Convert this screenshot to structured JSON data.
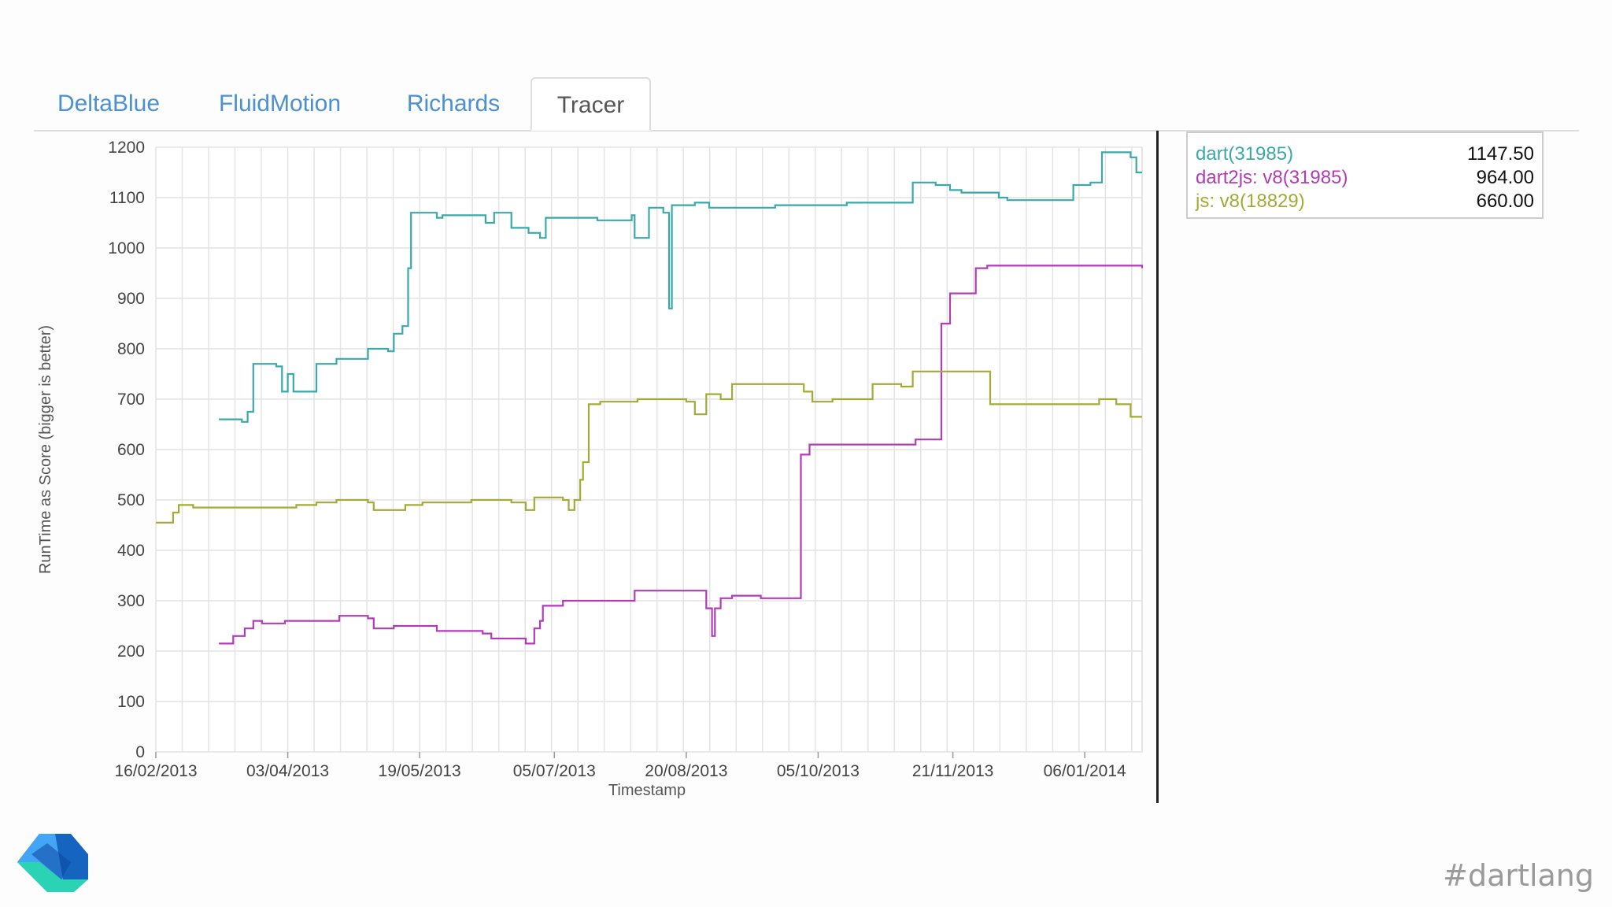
{
  "tabs": [
    {
      "label": "DeltaBlue",
      "active": false
    },
    {
      "label": "FluidMotion",
      "active": false
    },
    {
      "label": "Richards",
      "active": false
    },
    {
      "label": "Tracer",
      "active": true
    }
  ],
  "legend": [
    {
      "name": "dart(31985)",
      "value": "1147.50",
      "color": "#3aa9a9"
    },
    {
      "name": "dart2js: v8(31985)",
      "value": "964.00",
      "color": "#b23cb8"
    },
    {
      "name": "js: v8(18829)",
      "value": "660.00",
      "color": "#a3ab35"
    }
  ],
  "footer": {
    "hashtag": "#dartlang",
    "logo_icon": "dart-logo-icon"
  },
  "chart_data": {
    "type": "line",
    "step": true,
    "xlabel": "Timestamp",
    "ylabel": "RunTime as Score (bigger is better)",
    "ylim": [
      0,
      1200
    ],
    "xlim": [
      "2013-02-16",
      "2014-01-26"
    ],
    "yticks": [
      0,
      100,
      200,
      300,
      400,
      500,
      600,
      700,
      800,
      900,
      1000,
      1100,
      1200
    ],
    "xticks": [
      "16/02/2013",
      "03/04/2013",
      "19/05/2013",
      "05/07/2013",
      "20/08/2013",
      "05/10/2013",
      "21/11/2013",
      "06/01/2014"
    ],
    "grid": true,
    "series": [
      {
        "name": "dart(31985)",
        "color": "#3aa9a9",
        "points": [
          [
            "2013-03-10",
            660
          ],
          [
            "2013-03-18",
            655
          ],
          [
            "2013-03-20",
            675
          ],
          [
            "2013-03-22",
            770
          ],
          [
            "2013-03-30",
            765
          ],
          [
            "2013-04-01",
            715
          ],
          [
            "2013-04-03",
            750
          ],
          [
            "2013-04-05",
            715
          ],
          [
            "2013-04-11",
            715
          ],
          [
            "2013-04-13",
            770
          ],
          [
            "2013-04-20",
            780
          ],
          [
            "2013-04-30",
            780
          ],
          [
            "2013-05-01",
            800
          ],
          [
            "2013-05-08",
            795
          ],
          [
            "2013-05-10",
            830
          ],
          [
            "2013-05-13",
            845
          ],
          [
            "2013-05-15",
            960
          ],
          [
            "2013-05-16",
            1070
          ],
          [
            "2013-05-25",
            1060
          ],
          [
            "2013-05-27",
            1065
          ],
          [
            "2013-06-10",
            1065
          ],
          [
            "2013-06-11",
            1050
          ],
          [
            "2013-06-14",
            1070
          ],
          [
            "2013-06-20",
            1040
          ],
          [
            "2013-06-26",
            1030
          ],
          [
            "2013-06-30",
            1020
          ],
          [
            "2013-07-02",
            1060
          ],
          [
            "2013-07-20",
            1055
          ],
          [
            "2013-08-01",
            1065
          ],
          [
            "2013-08-02",
            1020
          ],
          [
            "2013-08-07",
            1080
          ],
          [
            "2013-08-10",
            1080
          ],
          [
            "2013-08-12",
            1070
          ],
          [
            "2013-08-14",
            880
          ],
          [
            "2013-08-15",
            1085
          ],
          [
            "2013-08-20",
            1085
          ],
          [
            "2013-08-23",
            1090
          ],
          [
            "2013-08-28",
            1080
          ],
          [
            "2013-09-10",
            1080
          ],
          [
            "2013-09-20",
            1085
          ],
          [
            "2013-10-10",
            1085
          ],
          [
            "2013-10-15",
            1090
          ],
          [
            "2013-11-06",
            1090
          ],
          [
            "2013-11-07",
            1130
          ],
          [
            "2013-11-15",
            1125
          ],
          [
            "2013-11-20",
            1115
          ],
          [
            "2013-11-24",
            1110
          ],
          [
            "2013-12-05",
            1110
          ],
          [
            "2013-12-07",
            1100
          ],
          [
            "2013-12-10",
            1095
          ],
          [
            "2013-12-30",
            1095
          ],
          [
            "2014-01-02",
            1125
          ],
          [
            "2014-01-08",
            1130
          ],
          [
            "2014-01-12",
            1190
          ],
          [
            "2014-01-22",
            1180
          ],
          [
            "2014-01-24",
            1150
          ],
          [
            "2014-01-26",
            1150
          ]
        ]
      },
      {
        "name": "dart2js: v8(31985)",
        "color": "#b23cb8",
        "points": [
          [
            "2013-03-10",
            215
          ],
          [
            "2013-03-15",
            230
          ],
          [
            "2013-03-19",
            245
          ],
          [
            "2013-03-22",
            260
          ],
          [
            "2013-03-25",
            255
          ],
          [
            "2013-04-02",
            260
          ],
          [
            "2013-04-20",
            260
          ],
          [
            "2013-04-21",
            270
          ],
          [
            "2013-05-01",
            265
          ],
          [
            "2013-05-03",
            245
          ],
          [
            "2013-05-10",
            250
          ],
          [
            "2013-05-25",
            240
          ],
          [
            "2013-06-10",
            235
          ],
          [
            "2013-06-13",
            225
          ],
          [
            "2013-06-25",
            215
          ],
          [
            "2013-06-28",
            245
          ],
          [
            "2013-06-30",
            260
          ],
          [
            "2013-07-01",
            290
          ],
          [
            "2013-07-08",
            300
          ],
          [
            "2013-08-01",
            300
          ],
          [
            "2013-08-02",
            320
          ],
          [
            "2013-08-10",
            320
          ],
          [
            "2013-08-26",
            320
          ],
          [
            "2013-08-27",
            285
          ],
          [
            "2013-08-29",
            230
          ],
          [
            "2013-08-30",
            285
          ],
          [
            "2013-09-01",
            305
          ],
          [
            "2013-09-05",
            310
          ],
          [
            "2013-09-15",
            305
          ],
          [
            "2013-09-28",
            305
          ],
          [
            "2013-09-29",
            590
          ],
          [
            "2013-10-02",
            610
          ],
          [
            "2013-11-08",
            620
          ],
          [
            "2013-11-16",
            620
          ],
          [
            "2013-11-17",
            850
          ],
          [
            "2013-11-20",
            910
          ],
          [
            "2013-11-28",
            910
          ],
          [
            "2013-11-29",
            960
          ],
          [
            "2013-12-03",
            965
          ],
          [
            "2014-01-26",
            960
          ]
        ]
      },
      {
        "name": "js: v8(18829)",
        "color": "#a3ab35",
        "points": [
          [
            "2013-02-16",
            455
          ],
          [
            "2013-02-22",
            475
          ],
          [
            "2013-02-24",
            490
          ],
          [
            "2013-03-01",
            485
          ],
          [
            "2013-04-06",
            490
          ],
          [
            "2013-04-13",
            495
          ],
          [
            "2013-04-20",
            500
          ],
          [
            "2013-05-01",
            495
          ],
          [
            "2013-05-03",
            480
          ],
          [
            "2013-05-11",
            480
          ],
          [
            "2013-05-14",
            490
          ],
          [
            "2013-05-20",
            495
          ],
          [
            "2013-06-06",
            500
          ],
          [
            "2013-06-20",
            495
          ],
          [
            "2013-06-25",
            480
          ],
          [
            "2013-06-28",
            505
          ],
          [
            "2013-07-08",
            500
          ],
          [
            "2013-07-10",
            480
          ],
          [
            "2013-07-12",
            500
          ],
          [
            "2013-07-14",
            540
          ],
          [
            "2013-07-15",
            575
          ],
          [
            "2013-07-17",
            690
          ],
          [
            "2013-07-21",
            695
          ],
          [
            "2013-08-01",
            695
          ],
          [
            "2013-08-03",
            700
          ],
          [
            "2013-08-20",
            695
          ],
          [
            "2013-08-23",
            670
          ],
          [
            "2013-08-27",
            710
          ],
          [
            "2013-09-01",
            700
          ],
          [
            "2013-09-05",
            730
          ],
          [
            "2013-09-12",
            730
          ],
          [
            "2013-09-22",
            730
          ],
          [
            "2013-09-30",
            715
          ],
          [
            "2013-10-03",
            695
          ],
          [
            "2013-10-10",
            700
          ],
          [
            "2013-10-23",
            700
          ],
          [
            "2013-10-24",
            730
          ],
          [
            "2013-11-03",
            725
          ],
          [
            "2013-11-06",
            725
          ],
          [
            "2013-11-07",
            755
          ],
          [
            "2013-12-03",
            755
          ],
          [
            "2013-12-04",
            690
          ],
          [
            "2013-12-20",
            690
          ],
          [
            "2014-01-05",
            690
          ],
          [
            "2014-01-11",
            700
          ],
          [
            "2014-01-17",
            690
          ],
          [
            "2014-01-22",
            665
          ],
          [
            "2014-01-26",
            665
          ]
        ]
      }
    ]
  }
}
